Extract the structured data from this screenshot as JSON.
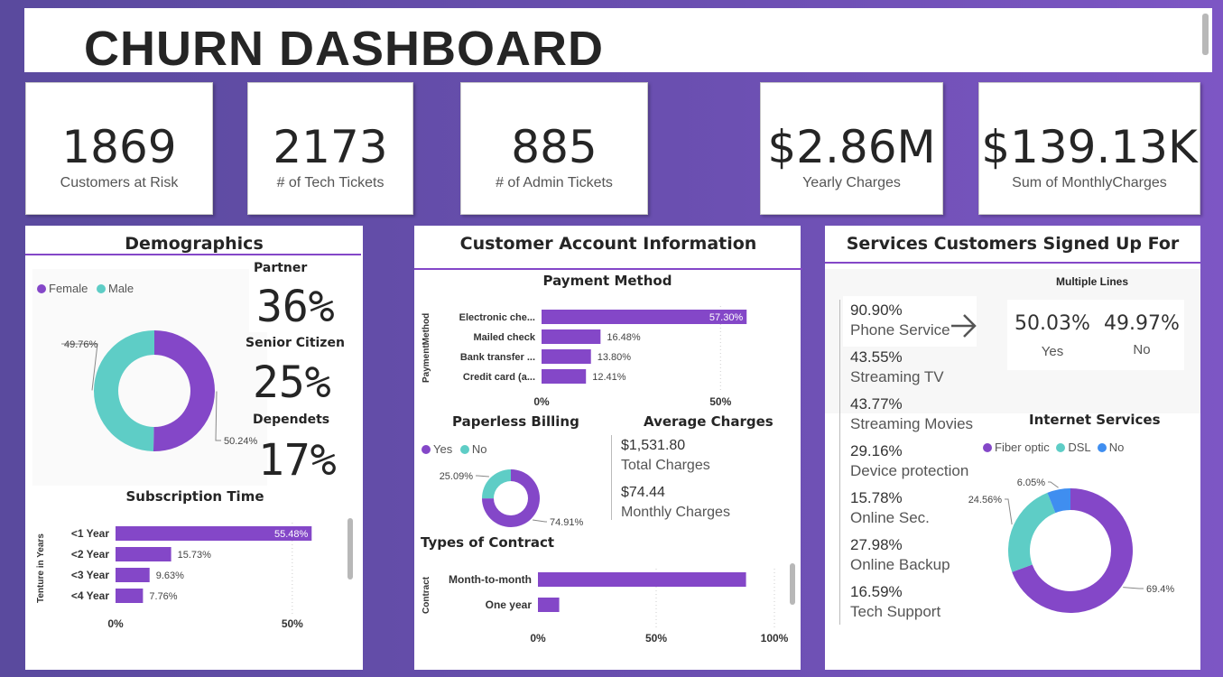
{
  "header": {
    "title": "CHURN DASHBOARD"
  },
  "kpis": [
    {
      "value": "1869",
      "label": "Customers at Risk"
    },
    {
      "value": "2173",
      "label": "# of Tech Tickets"
    },
    {
      "value": "885",
      "label": "# of Admin Tickets"
    },
    {
      "value": "$2.86M",
      "label": "Yearly Charges"
    },
    {
      "value": "$139.13K",
      "label": "Sum of MonthlyCharges"
    }
  ],
  "demographics": {
    "title": "Demographics",
    "partner_label": "Partner",
    "partner_value": "36%",
    "senior_label": "Senior Citizen",
    "senior_value": "25%",
    "dependents_label": "Dependets",
    "dependents_value": "17%",
    "subscription_title": "Subscription Time",
    "subscription_axis": "Tenture in Years"
  },
  "account": {
    "title": "Customer Account Information",
    "payment_title": "Payment Method",
    "payment_axis": "PaymentMethod",
    "paperless_title": "Paperless Billing",
    "avg_title": "Average Charges",
    "total_value": "$1,531.80",
    "total_label": "Total Charges",
    "monthly_value": "$74.44",
    "monthly_label": "Monthly Charges",
    "contract_title": "Types of Contract",
    "contract_axis": "Contract"
  },
  "services": {
    "title": "Services Customers Signed Up For",
    "multiple_lines_title": "Multiple Lines",
    "ml_yes_value": "50.03%",
    "ml_yes_label": "Yes",
    "ml_no_value": "49.97%",
    "ml_no_label": "No",
    "internet_title": "Internet Services",
    "arrow_icon": "arrow-right-icon",
    "list": [
      {
        "pct": "90.90%",
        "name": "Phone Service"
      },
      {
        "pct": "43.55%",
        "name": "Streaming TV"
      },
      {
        "pct": "43.77%",
        "name": "Streaming Movies"
      },
      {
        "pct": "29.16%",
        "name": "Device protection"
      },
      {
        "pct": "15.78%",
        "name": "Online Sec."
      },
      {
        "pct": "27.98%",
        "name": "Online Backup"
      },
      {
        "pct": "16.59%",
        "name": "Tech Support"
      }
    ]
  },
  "colors": {
    "purple": "#8447c8",
    "teal": "#5ecdc6",
    "blue": "#3f8ef0"
  },
  "chart_data": [
    {
      "type": "pie",
      "name": "gender",
      "legend_position": "top-left",
      "categories": [
        "Female",
        "Male"
      ],
      "values": [
        50.24,
        49.76
      ],
      "labels": [
        "50.24%",
        "49.76%"
      ],
      "colors": [
        "#8447c8",
        "#5ecdc6"
      ]
    },
    {
      "type": "bar",
      "name": "subscription",
      "categories": [
        "<1 Year",
        "<2 Year",
        "<3 Year",
        "<4 Year"
      ],
      "values": [
        55.48,
        15.73,
        9.63,
        7.76
      ],
      "labels": [
        "55.48%",
        "15.73%",
        "9.63%",
        "7.76%"
      ],
      "xlim": [
        0,
        60
      ],
      "ticks": [
        "0%",
        "50%"
      ],
      "tick_values": [
        0,
        50
      ]
    },
    {
      "type": "bar",
      "name": "payment",
      "categories": [
        "Electronic che...",
        "Mailed check",
        "Bank transfer ...",
        "Credit card (a..."
      ],
      "values": [
        57.3,
        16.48,
        13.8,
        12.41
      ],
      "labels": [
        "57.30%",
        "16.48%",
        "13.80%",
        "12.41%"
      ],
      "xlim": [
        0,
        58
      ],
      "ticks": [
        "0%",
        "50%"
      ],
      "tick_values": [
        0,
        50
      ]
    },
    {
      "type": "pie",
      "name": "paperless",
      "legend_position": "top-left",
      "categories": [
        "Yes",
        "No"
      ],
      "values": [
        74.91,
        25.09
      ],
      "labels": [
        "74.91%",
        "25.09%"
      ],
      "colors": [
        "#8447c8",
        "#5ecdc6"
      ]
    },
    {
      "type": "bar",
      "name": "contract",
      "categories": [
        "Month-to-month",
        "One year"
      ],
      "values": [
        88,
        9
      ],
      "xlim": [
        0,
        100
      ],
      "ticks": [
        "0%",
        "50%",
        "100%"
      ],
      "tick_values": [
        0,
        50,
        100
      ]
    },
    {
      "type": "pie",
      "name": "internet",
      "legend_position": "top-left",
      "categories": [
        "Fiber optic",
        "DSL",
        "No"
      ],
      "values": [
        69.4,
        24.56,
        6.05
      ],
      "labels": [
        "69.4%",
        "24.56%",
        "6.05%"
      ],
      "colors": [
        "#8447c8",
        "#5ecdc6",
        "#3f8ef0"
      ]
    }
  ]
}
